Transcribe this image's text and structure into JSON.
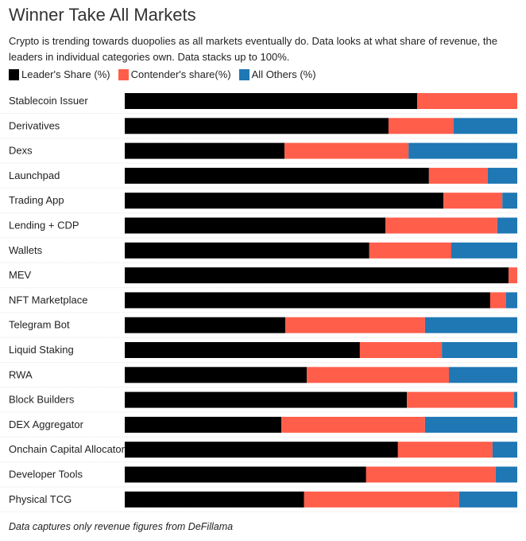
{
  "chart_data": {
    "type": "bar",
    "orientation": "horizontal",
    "stacked": true,
    "title": "Winner Take All Markets",
    "subtitle": "Crypto is trending towards duopolies as all markets eventually do. Data looks at what share of revenue, the leaders in individual categories own. Data stacks up to 100%.",
    "footnote": "Data captures only revenue figures from DeFillama",
    "legend_position": "top-left",
    "xlim": [
      0,
      100
    ],
    "grid": false,
    "categories": [
      "Stablecoin Issuer",
      "Derivatives",
      "Dexs",
      "Launchpad",
      "Trading App",
      "Lending + CDP",
      "Wallets",
      "MEV",
      "NFT Marketplace",
      "Telegram Bot",
      "Liquid Staking",
      "RWA",
      "Block Builders",
      "DEX Aggregator",
      "Onchain Capital Allocator",
      "Developer Tools",
      "Physical TCG"
    ],
    "series": [
      {
        "name": "Leader's Share (%)",
        "color": "#000000",
        "values": [
          74.5,
          67.2,
          40.7,
          77.5,
          81.2,
          66.4,
          62.3,
          97.8,
          93.1,
          40.9,
          59.9,
          46.4,
          71.9,
          39.9,
          69.6,
          61.5,
          45.7
        ]
      },
      {
        "name": "Contender's share(%)",
        "color": "#ff5e4b",
        "values": [
          25.5,
          16.6,
          31.6,
          15.0,
          15.0,
          28.5,
          20.9,
          2.2,
          4.0,
          35.6,
          20.9,
          36.2,
          27.3,
          36.6,
          24.1,
          33.0,
          39.5
        ]
      },
      {
        "name": "All Others (%)",
        "color": "#1f77b4",
        "values": [
          0,
          16.2,
          27.7,
          7.5,
          3.8,
          5.1,
          16.8,
          0,
          2.9,
          23.5,
          19.2,
          17.4,
          0.8,
          23.5,
          6.3,
          5.5,
          14.8
        ]
      }
    ]
  }
}
